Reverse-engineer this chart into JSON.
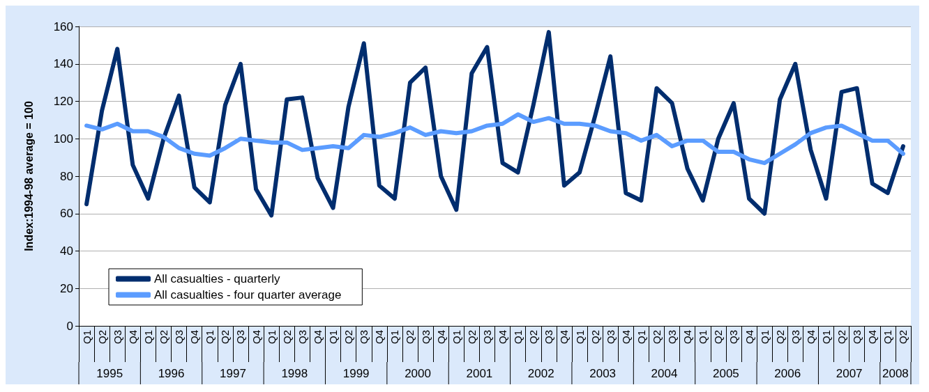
{
  "chart_data": {
    "type": "line",
    "ylabel": "Index:1994-98 average = 100",
    "categories": [
      "Q1",
      "Q2",
      "Q3",
      "Q4",
      "Q1",
      "Q2",
      "Q3",
      "Q4",
      "Q1",
      "Q2",
      "Q3",
      "Q4",
      "Q1",
      "Q2",
      "Q3",
      "Q4",
      "Q1",
      "Q2",
      "Q3",
      "Q4",
      "Q1",
      "Q2",
      "Q3",
      "Q4",
      "Q1",
      "Q2",
      "Q3",
      "Q4",
      "Q1",
      "Q2",
      "Q3",
      "Q4",
      "Q1",
      "Q2",
      "Q3",
      "Q4",
      "Q1",
      "Q2",
      "Q3",
      "Q4",
      "Q1",
      "Q2",
      "Q3",
      "Q4",
      "Q1",
      "Q2",
      "Q3",
      "Q4",
      "Q1",
      "Q2",
      "Q3",
      "Q4",
      "Q1",
      "Q2"
    ],
    "annotations": [
      "1995",
      "1996",
      "1997",
      "1998",
      "1999",
      "2000",
      "2001",
      "2002",
      "2003",
      "2004",
      "2005",
      "2006",
      "2007",
      "2008"
    ],
    "series": [
      {
        "name": "All casualties - quarterly",
        "color": "#002d6e",
        "values": [
          65,
          115,
          148,
          86,
          68,
          100,
          123,
          74,
          66,
          118,
          140,
          73,
          59,
          121,
          122,
          79,
          63,
          117,
          151,
          75,
          68,
          130,
          138,
          80,
          62,
          135,
          149,
          87,
          82,
          118,
          157,
          75,
          82,
          112,
          144,
          71,
          67,
          127,
          119,
          84,
          67,
          100,
          119,
          68,
          60,
          121,
          140,
          94,
          68,
          125,
          127,
          76,
          71,
          96
        ]
      },
      {
        "name": "All casualties - four quarter average",
        "color": "#5b9cff",
        "values": [
          107,
          105,
          108,
          104,
          104,
          101,
          95,
          92,
          91,
          95,
          100,
          99,
          98,
          98,
          94,
          95,
          96,
          95,
          102,
          101,
          103,
          106,
          102,
          104,
          103,
          104,
          107,
          108,
          113,
          109,
          111,
          108,
          108,
          107,
          104,
          103,
          99,
          102,
          96,
          99,
          99,
          93,
          93,
          89,
          87,
          92,
          97,
          103,
          106,
          107,
          103,
          99,
          99,
          92
        ]
      }
    ],
    "ylim": [
      0,
      160
    ],
    "yticks": [
      0,
      20,
      40,
      60,
      80,
      100,
      120,
      140,
      160
    ],
    "grid": "y",
    "legend": "bottom left",
    "marker": "none",
    "line_style": "solid"
  }
}
